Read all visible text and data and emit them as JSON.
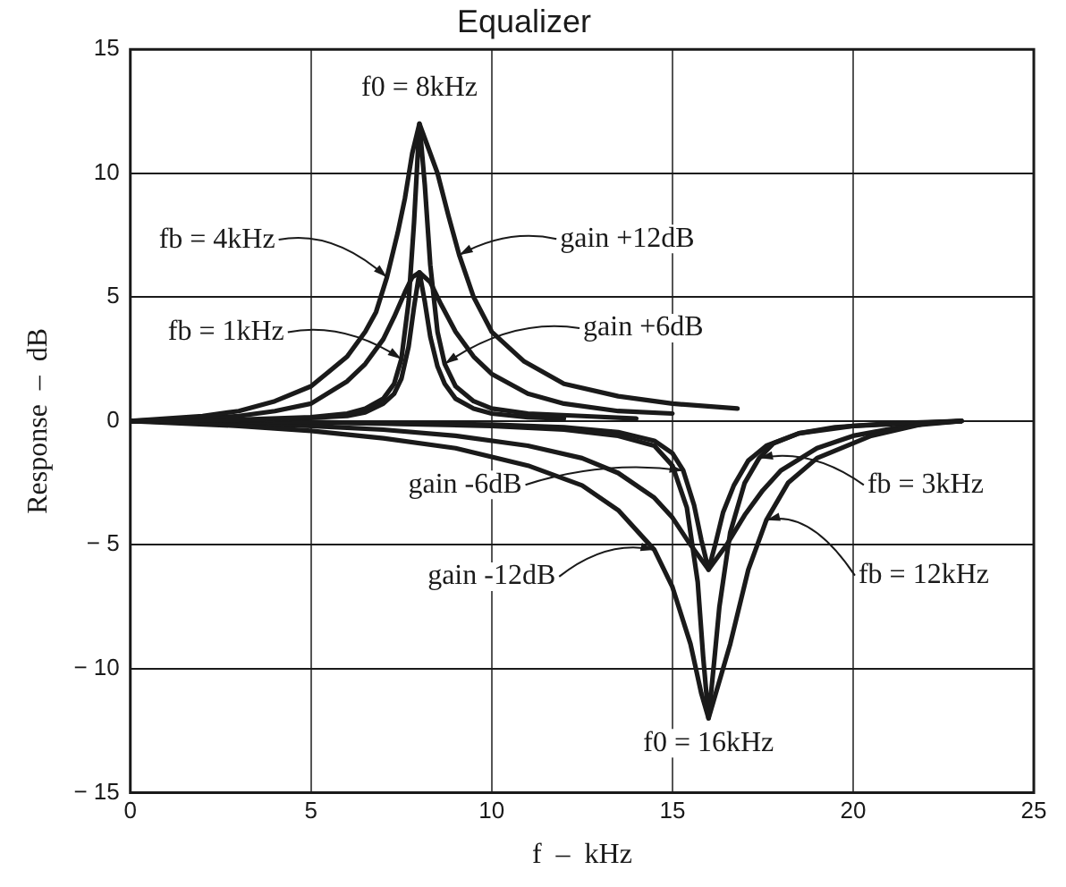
{
  "chart_data": {
    "type": "line",
    "title": "Equalizer",
    "xlabel": "f  –  kHz",
    "ylabel": "Response  –  dB",
    "xlim": [
      0,
      25
    ],
    "xticks": [
      0,
      5,
      10,
      15,
      20,
      25
    ],
    "ylim": [
      -15,
      15
    ],
    "yticks": [
      15,
      10,
      5,
      0,
      {
        "value": -5,
        "label": "− 5"
      },
      {
        "value": -10,
        "label": "− 10"
      },
      {
        "value": -15,
        "label": "− 15"
      }
    ],
    "grid": true,
    "legend": false,
    "marker": "none",
    "line_style": "solid",
    "series": [
      {
        "color": "#1a1a1a",
        "x": [
          0,
          2,
          3,
          4,
          5,
          5.5,
          6,
          6.5,
          6.8,
          7.1,
          7.4,
          7.6,
          7.8,
          8,
          8.2,
          8.5,
          8.8,
          9.1,
          9.5,
          10,
          10.9,
          12,
          13.5,
          15,
          16.8
        ],
        "values": [
          0,
          0.2,
          0.4,
          0.8,
          1.4,
          2,
          2.6,
          3.6,
          4.4,
          5.8,
          7.6,
          9,
          10.8,
          12,
          11.2,
          10,
          8.3,
          6.7,
          5,
          3.6,
          2.4,
          1.5,
          1,
          0.7,
          0.5
        ]
      },
      {
        "color": "#1a1a1a",
        "x": [
          0,
          3,
          5,
          6,
          6.5,
          7,
          7.3,
          7.5,
          7.7,
          7.85,
          8,
          8.15,
          8.3,
          8.5,
          8.7,
          9,
          9.5,
          10,
          11,
          12.5,
          14
        ],
        "values": [
          0,
          0.05,
          0.15,
          0.3,
          0.5,
          0.9,
          1.5,
          2.5,
          4.8,
          8,
          12,
          9.5,
          6.3,
          3.6,
          2.3,
          1.4,
          0.8,
          0.5,
          0.3,
          0.2,
          0.1
        ]
      },
      {
        "color": "#1a1a1a",
        "x": [
          0,
          2,
          3,
          4,
          5,
          6,
          6.5,
          7,
          7.3,
          7.6,
          7.8,
          8,
          8.3,
          8.6,
          9,
          9.5,
          10,
          11,
          12,
          13.5,
          15
        ],
        "values": [
          0,
          0.1,
          0.2,
          0.4,
          0.7,
          1.6,
          2.3,
          3.3,
          4.2,
          5.2,
          5.8,
          6,
          5.6,
          4.7,
          3.6,
          2.6,
          1.9,
          1.1,
          0.7,
          0.4,
          0.3
        ]
      },
      {
        "color": "#1a1a1a",
        "x": [
          0,
          4,
          6,
          6.5,
          7,
          7.3,
          7.5,
          7.7,
          7.85,
          8,
          8.15,
          8.3,
          8.5,
          8.7,
          9,
          9.5,
          10,
          11,
          12
        ],
        "values": [
          0,
          0.05,
          0.2,
          0.35,
          0.7,
          1.1,
          1.7,
          3,
          4.6,
          6,
          4.8,
          3.4,
          2.2,
          1.5,
          0.9,
          0.5,
          0.3,
          0.15,
          0.1
        ]
      },
      {
        "color": "#1a1a1a",
        "x": [
          0,
          3,
          5,
          7,
          9,
          11,
          12.5,
          13.5,
          14.5,
          15,
          15.5,
          15.8,
          16,
          16.2,
          16.6,
          17.1,
          17.6,
          18.2,
          19,
          20.5,
          22,
          23
        ],
        "values": [
          0,
          -0.2,
          -0.4,
          -0.7,
          -1.1,
          -1.8,
          -2.6,
          -3.6,
          -5.2,
          -6.7,
          -9,
          -11,
          -12,
          -11,
          -9,
          -6,
          -4,
          -2.5,
          -1.5,
          -0.6,
          -0.1,
          0
        ]
      },
      {
        "color": "#1a1a1a",
        "x": [
          0,
          5,
          10,
          12,
          13.5,
          14.5,
          15,
          15.4,
          15.7,
          15.85,
          16,
          16.15,
          16.3,
          16.6,
          17,
          17.4,
          17.8,
          18.5,
          19.5,
          21,
          23
        ],
        "values": [
          0,
          -0.05,
          -0.2,
          -0.35,
          -0.6,
          -1,
          -1.8,
          -3.5,
          -6.5,
          -9.5,
          -12,
          -9.8,
          -7.5,
          -4.5,
          -2.5,
          -1.5,
          -0.9,
          -0.5,
          -0.25,
          -0.1,
          0
        ]
      },
      {
        "color": "#1a1a1a",
        "x": [
          0,
          3,
          5,
          7,
          9,
          11,
          12.5,
          13.5,
          14.5,
          15,
          15.5,
          16,
          16.5,
          17,
          17.5,
          18,
          19,
          20,
          21.5,
          23
        ],
        "values": [
          0,
          -0.1,
          -0.2,
          -0.35,
          -0.6,
          -1,
          -1.5,
          -2.1,
          -3.1,
          -3.9,
          -5,
          -6,
          -5,
          -3.8,
          -2.8,
          -2,
          -1.1,
          -0.6,
          -0.2,
          0
        ]
      },
      {
        "color": "#1a1a1a",
        "x": [
          0,
          5,
          10,
          12,
          13.5,
          14.5,
          15,
          15.3,
          15.6,
          15.8,
          16,
          16.2,
          16.4,
          16.7,
          17.1,
          17.6,
          18.5,
          20,
          23
        ],
        "values": [
          0,
          -0.05,
          -0.15,
          -0.25,
          -0.45,
          -0.8,
          -1.3,
          -2,
          -3.4,
          -4.8,
          -6,
          -4.9,
          -3.7,
          -2.6,
          -1.6,
          -1,
          -0.5,
          -0.2,
          0
        ]
      }
    ],
    "annotations": [
      {
        "text": "f0 = 8kHz",
        "x": 8,
        "y": 12
      },
      {
        "text": "fb = 4kHz",
        "x": 7.1,
        "y": 5.8
      },
      {
        "text": "gain +12dB",
        "x": 9.1,
        "y": 6.7
      },
      {
        "text": "fb = 1kHz",
        "x": 7.5,
        "y": 2.5
      },
      {
        "text": "gain +6dB",
        "x": 8.7,
        "y": 2.3
      },
      {
        "text": "gain -6dB",
        "x": 15.3,
        "y": -2
      },
      {
        "text": "gain -12dB",
        "x": 14.5,
        "y": -5.2
      },
      {
        "text": "fb = 3kHz",
        "x": 17.4,
        "y": -1.5
      },
      {
        "text": "fb = 12kHz",
        "x": 17.6,
        "y": -4
      },
      {
        "text": "f0 = 16kHz",
        "x": 16,
        "y": -12
      }
    ]
  }
}
